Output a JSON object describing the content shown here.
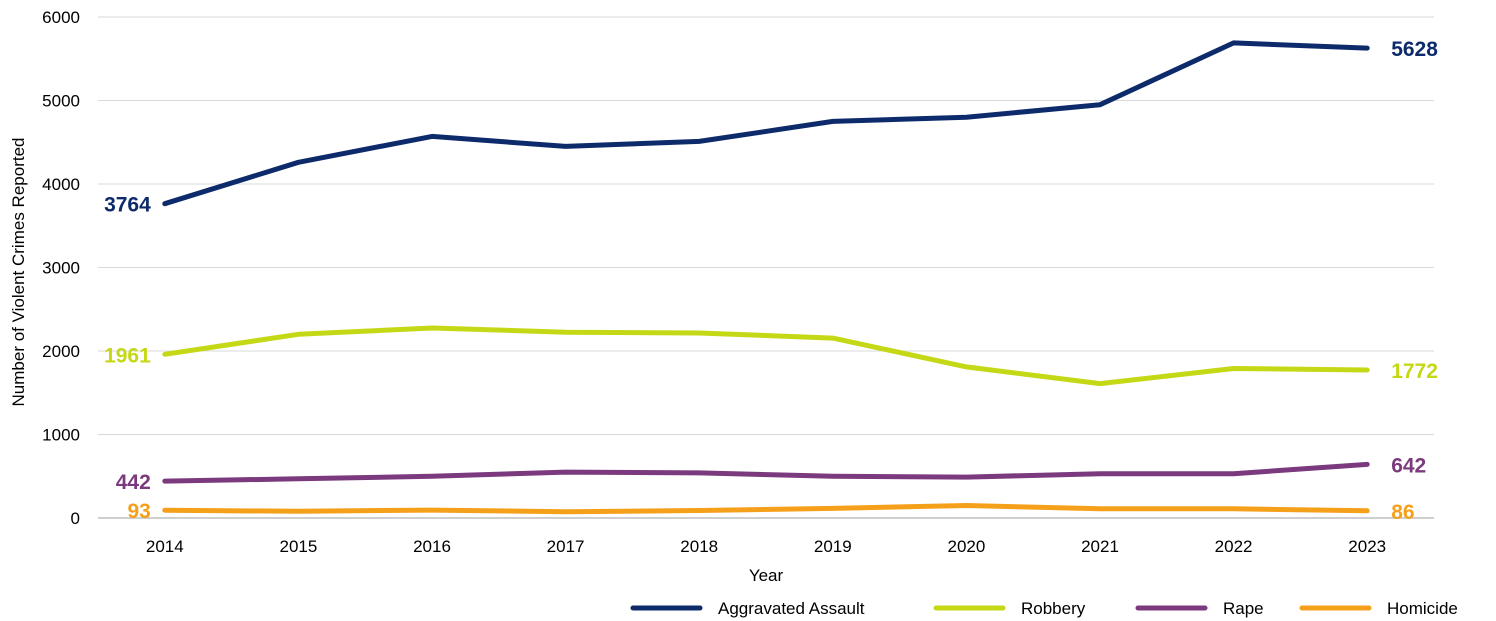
{
  "chart_data": {
    "type": "line",
    "title": "",
    "xlabel": "Year",
    "ylabel": "Number of Violent Crimes Reported",
    "categories": [
      "2014",
      "2015",
      "2016",
      "2017",
      "2018",
      "2019",
      "2020",
      "2021",
      "2022",
      "2023"
    ],
    "ylim": [
      0,
      6000
    ],
    "yticks": [
      0,
      1000,
      2000,
      3000,
      4000,
      5000,
      6000
    ],
    "grid": true,
    "legend_position": "bottom-right",
    "series": [
      {
        "name": "Aggravated Assault",
        "color": "#0d2b6b",
        "values": [
          3764,
          4260,
          4570,
          4450,
          4510,
          4750,
          4800,
          4950,
          5690,
          5628
        ],
        "start_label": "3764",
        "end_label": "5628"
      },
      {
        "name": "Robbery",
        "color": "#c5d815",
        "values": [
          1961,
          2200,
          2275,
          2225,
          2215,
          2155,
          1810,
          1610,
          1790,
          1772
        ],
        "start_label": "1961",
        "end_label": "1772"
      },
      {
        "name": "Rape",
        "color": "#7b3a7d",
        "values": [
          442,
          470,
          500,
          550,
          540,
          500,
          490,
          530,
          530,
          642
        ],
        "start_label": "442",
        "end_label": "642"
      },
      {
        "name": "Homicide",
        "color": "#f5a01a",
        "values": [
          93,
          80,
          95,
          75,
          90,
          115,
          150,
          110,
          110,
          86
        ],
        "start_label": "93",
        "end_label": "86"
      }
    ]
  }
}
